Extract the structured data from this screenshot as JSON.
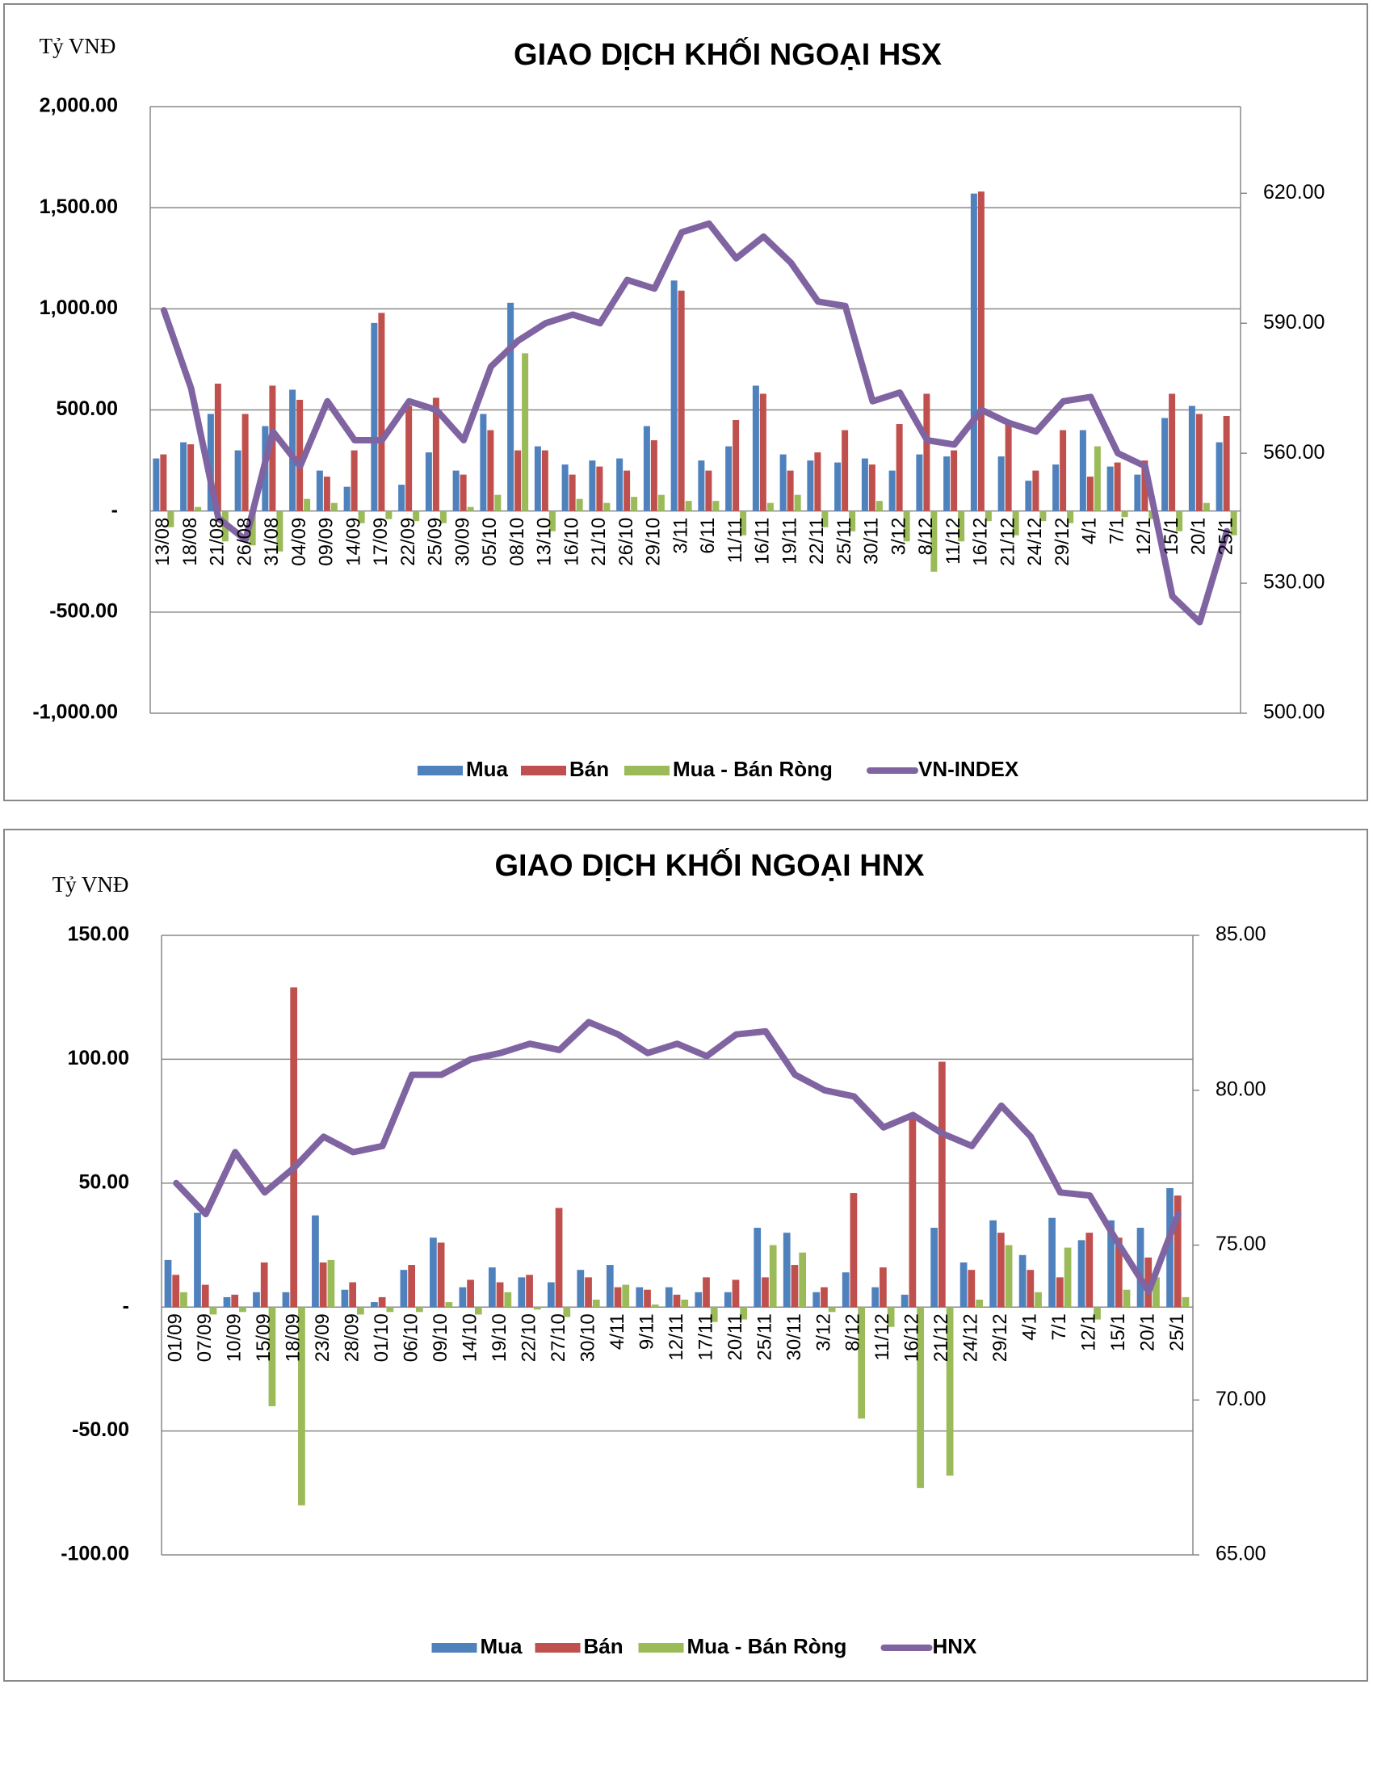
{
  "chart_data": [
    {
      "type": "bar-line",
      "title": "GIAO DỊCH KHỐI NGOẠI HSX",
      "y_label": "Tỷ VNĐ",
      "categories": [
        "13/08",
        "18/08",
        "21/08",
        "26/08",
        "31/08",
        "04/09",
        "09/09",
        "14/09",
        "17/09",
        "22/09",
        "25/09",
        "30/09",
        "05/10",
        "08/10",
        "13/10",
        "16/10",
        "21/10",
        "26/10",
        "29/10",
        "3/11",
        "6/11",
        "11/11",
        "16/11",
        "19/11",
        "22/11",
        "25/11",
        "30/11",
        "3/12",
        "8/12",
        "11/12",
        "16/12",
        "21/12",
        "24/12",
        "29/12",
        "4/1",
        "7/1",
        "12/1",
        "15/1",
        "20/1",
        "25/1"
      ],
      "series": [
        {
          "name": "Mua",
          "color": "#4f81bd",
          "values": [
            260,
            340,
            480,
            300,
            420,
            600,
            200,
            120,
            930,
            130,
            290,
            200,
            480,
            1030,
            320,
            230,
            250,
            260,
            420,
            1140,
            250,
            320,
            620,
            280,
            250,
            240,
            260,
            200,
            280,
            270,
            1570,
            270,
            150,
            230,
            400,
            220,
            180,
            460,
            520,
            340
          ]
        },
        {
          "name": "Bán",
          "color": "#c0504d",
          "values": [
            280,
            330,
            630,
            480,
            620,
            550,
            170,
            300,
            980,
            520,
            560,
            180,
            400,
            300,
            300,
            180,
            220,
            200,
            350,
            1090,
            200,
            450,
            580,
            200,
            290,
            400,
            230,
            430,
            580,
            300,
            1580,
            430,
            200,
            400,
            170,
            240,
            250,
            580,
            480,
            470
          ]
        },
        {
          "name": "Mua - Bán Ròng",
          "color": "#9bbb59",
          "values": [
            -80,
            20,
            -150,
            -170,
            -200,
            60,
            40,
            -60,
            -40,
            -50,
            -60,
            20,
            80,
            780,
            -100,
            60,
            40,
            70,
            80,
            50,
            50,
            -120,
            40,
            80,
            -80,
            -100,
            50,
            -150,
            -300,
            -150,
            -50,
            -120,
            -50,
            -60,
            320,
            -30,
            -40,
            -100,
            40,
            -120
          ]
        },
        {
          "name": "VN-INDEX",
          "color": "#8064a2",
          "axis": "y2",
          "values": [
            593,
            575,
            545,
            540,
            565,
            557,
            572,
            563,
            563,
            572,
            570,
            563,
            580,
            586,
            590,
            592,
            590,
            600,
            598,
            611,
            613,
            605,
            610,
            604,
            595,
            594,
            572,
            574,
            563,
            562,
            570,
            567,
            565,
            572,
            573,
            560,
            557,
            527,
            521,
            542
          ]
        }
      ],
      "ylim": [
        -1000,
        2000
      ],
      "yticks": [
        {
          "value": -1000,
          "label": "-1,000.00"
        },
        {
          "value": -500,
          "label": "-500.00"
        },
        {
          "value": 0,
          "label": "-"
        },
        {
          "value": 500,
          "label": "500.00"
        },
        {
          "value": 1000,
          "label": "1,000.00"
        },
        {
          "value": 1500,
          "label": "1,500.00"
        },
        {
          "value": 2000,
          "label": "2,000.00"
        }
      ],
      "y2lim": [
        500,
        640
      ],
      "y2ticks": [
        {
          "value": 500,
          "label": "500.00"
        },
        {
          "value": 530,
          "label": "530.00"
        },
        {
          "value": 560,
          "label": "560.00"
        },
        {
          "value": 590,
          "label": "590.00"
        },
        {
          "value": 620,
          "label": "620.00"
        }
      ],
      "grid": true,
      "legend": "bottom"
    },
    {
      "type": "bar-line",
      "title": "GIAO DỊCH KHỐI NGOẠI HNX",
      "y_label": "Tỷ VNĐ",
      "categories": [
        "01/09",
        "07/09",
        "10/09",
        "15/09",
        "18/09",
        "23/09",
        "28/09",
        "01/10",
        "06/10",
        "09/10",
        "14/10",
        "19/10",
        "22/10",
        "27/10",
        "30/10",
        "4/11",
        "9/11",
        "12/11",
        "17/11",
        "20/11",
        "25/11",
        "30/11",
        "3/12",
        "8/12",
        "11/12",
        "16/12",
        "21/12",
        "24/12",
        "29/12",
        "4/1",
        "7/1",
        "12/1",
        "15/1",
        "20/1",
        "25/1"
      ],
      "series": [
        {
          "name": "Mua",
          "color": "#4f81bd",
          "values": [
            19,
            38,
            4,
            6,
            6,
            37,
            7,
            2,
            15,
            28,
            8,
            16,
            12,
            10,
            15,
            17,
            8,
            8,
            6,
            6,
            32,
            30,
            6,
            14,
            8,
            5,
            32,
            18,
            35,
            21,
            36,
            27,
            35,
            32,
            48
          ]
        },
        {
          "name": "Bán",
          "color": "#c0504d",
          "values": [
            13,
            9,
            5,
            18,
            129,
            18,
            10,
            4,
            17,
            26,
            11,
            10,
            13,
            40,
            12,
            8,
            7,
            5,
            12,
            11,
            12,
            17,
            8,
            46,
            16,
            78,
            99,
            15,
            30,
            15,
            12,
            30,
            28,
            20,
            45
          ]
        },
        {
          "name": "Mua - Bán Ròng",
          "color": "#9bbb59",
          "values": [
            6,
            -3,
            -2,
            -40,
            -80,
            19,
            -3,
            -2,
            -2,
            2,
            -3,
            6,
            -1,
            -4,
            3,
            9,
            1,
            3,
            -6,
            -5,
            25,
            22,
            -2,
            -45,
            -8,
            -73,
            -68,
            3,
            25,
            6,
            24,
            -5,
            7,
            12,
            4
          ]
        },
        {
          "name": "HNX",
          "color": "#8064a2",
          "axis": "y2",
          "values": [
            77,
            76,
            78,
            76.7,
            77.5,
            78.5,
            78,
            78.2,
            80.5,
            80.5,
            81,
            81.2,
            81.5,
            81.3,
            82.2,
            81.8,
            81.2,
            81.5,
            81.1,
            81.8,
            81.9,
            80.5,
            80,
            79.8,
            78.8,
            79.2,
            78.6,
            78.2,
            79.5,
            78.5,
            76.7,
            76.6,
            75,
            73.5,
            76
          ]
        }
      ],
      "ylim": [
        -100,
        150
      ],
      "yticks": [
        {
          "value": -100,
          "label": "-100.00"
        },
        {
          "value": -50,
          "label": "-50.00"
        },
        {
          "value": 0,
          "label": "-"
        },
        {
          "value": 50,
          "label": "50.00"
        },
        {
          "value": 100,
          "label": "100.00"
        },
        {
          "value": 150,
          "label": "150.00"
        }
      ],
      "y2lim": [
        65,
        85
      ],
      "y2ticks": [
        {
          "value": 65,
          "label": "65.00"
        },
        {
          "value": 70,
          "label": "70.00"
        },
        {
          "value": 75,
          "label": "75.00"
        },
        {
          "value": 80,
          "label": "80.00"
        },
        {
          "value": 85,
          "label": "85.00"
        }
      ],
      "grid": true,
      "legend": "bottom"
    }
  ]
}
